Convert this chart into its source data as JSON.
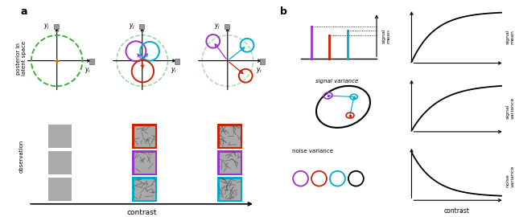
{
  "fig_width": 6.4,
  "fig_height": 2.7,
  "dpi": 100,
  "bg_color": "#ffffff",
  "label_a": "a",
  "label_b": "b",
  "contrast_label": "contrast",
  "posterior_label": "posterior in\nlatent space",
  "observation_label": "observation",
  "signal_mean_label": "signal mean",
  "signal_variance_text": "signal variance",
  "noise_variance_text": "noise variance",
  "color_purple": "#9933cc",
  "color_red": "#cc2200",
  "color_cyan": "#00aacc",
  "color_black": "#000000",
  "color_green_dashed": "#33aa33",
  "color_gray_sq": "#999999",
  "color_obs_gray": "#aaaaaa"
}
